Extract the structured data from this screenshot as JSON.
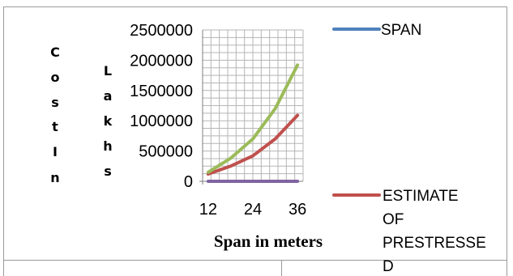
{
  "chart_data": {
    "type": "line",
    "x": [
      12,
      18,
      24,
      30,
      36
    ],
    "x_tick_labels": [
      "12",
      "24",
      "36"
    ],
    "y_tick_labels": [
      "0",
      "500000",
      "1000000",
      "1500000",
      "2000000",
      "2500000"
    ],
    "ylim": [
      0,
      2500000
    ],
    "xlabel": "Span in meters",
    "ylabel_col1": [
      "C",
      "o",
      "s",
      "t",
      "I",
      "n"
    ],
    "ylabel_col2": [
      "L",
      "a",
      "k",
      "h",
      "s"
    ],
    "grid": true,
    "legend_position": "right",
    "series": [
      {
        "name": "SPAN",
        "color": "#4f81bd",
        "values": [
          12,
          18,
          24,
          30,
          36
        ],
        "show_line": false
      },
      {
        "name": "ESTIMATE OF PRESTRESSED",
        "legend_lines": [
          "ESTIMATE",
          "OF",
          "PRESTRESSE",
          "D"
        ],
        "color": "#c0504d",
        "values": [
          120000,
          250000,
          420000,
          700000,
          1090000
        ],
        "show_line": true
      },
      {
        "name": "",
        "color": "#9bbb59",
        "values": [
          150000,
          380000,
          700000,
          1200000,
          1920000
        ],
        "show_line": true
      },
      {
        "name": "",
        "color": "#8064a2",
        "values": [
          0,
          0,
          0,
          0,
          0
        ],
        "show_line": true
      }
    ]
  }
}
